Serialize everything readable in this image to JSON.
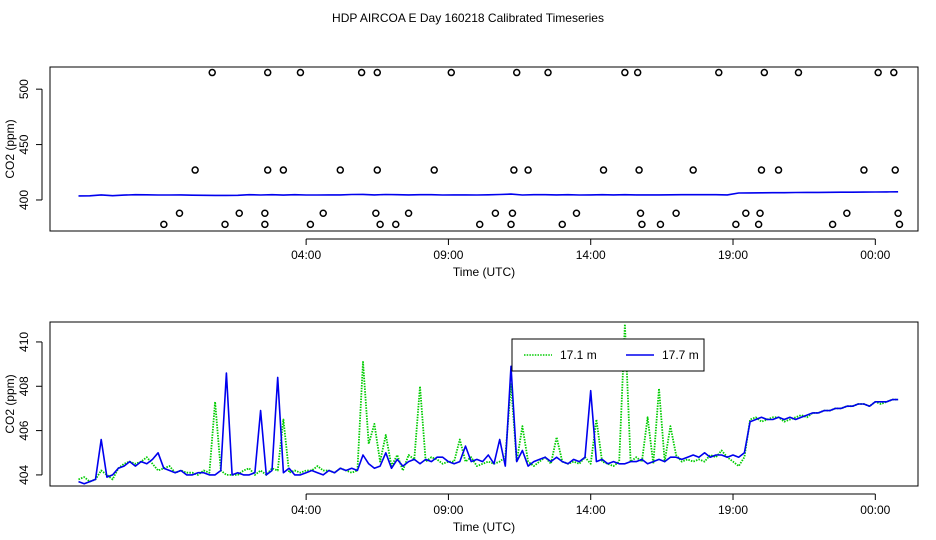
{
  "page": {
    "title": "HDP AIRCOA E  Day 160218  Calibrated Timeseries"
  },
  "colors": {
    "series_171": "#00cc00",
    "series_177": "#0000ee",
    "axis": "#000000"
  },
  "chart_data": [
    {
      "type": "scatter",
      "xlabel": "Time (UTC)",
      "ylabel": "CO2 (ppm)",
      "x_unit": "hours since 00:00 UTC (date axis)",
      "xlim": [
        -5,
        25.5
      ],
      "ylim": [
        372,
        520
      ],
      "x_ticks": [
        4,
        9,
        14,
        19,
        24
      ],
      "x_tick_labels": [
        "04:00",
        "09:00",
        "14:00",
        "19:00",
        "00:00"
      ],
      "y_ticks": [
        400,
        450,
        500
      ],
      "y_tick_labels": [
        "400",
        "450",
        "500"
      ],
      "grid": false,
      "point_series": {
        "name": "",
        "marker": "open-circle",
        "points": [
          [
            -1.0,
            378
          ],
          [
            -0.45,
            388
          ],
          [
            0.1,
            427
          ],
          [
            0.7,
            515
          ],
          [
            1.15,
            378
          ],
          [
            1.65,
            388
          ],
          [
            2.55,
            378
          ],
          [
            2.55,
            388
          ],
          [
            2.65,
            427
          ],
          [
            2.65,
            515
          ],
          [
            3.2,
            427
          ],
          [
            3.8,
            515
          ],
          [
            4.15,
            378
          ],
          [
            4.6,
            388
          ],
          [
            5.2,
            427
          ],
          [
            5.95,
            515
          ],
          [
            6.45,
            388
          ],
          [
            6.5,
            427
          ],
          [
            6.5,
            515
          ],
          [
            6.6,
            378
          ],
          [
            7.15,
            378
          ],
          [
            7.6,
            388
          ],
          [
            8.5,
            427
          ],
          [
            9.1,
            515
          ],
          [
            10.1,
            378
          ],
          [
            10.65,
            388
          ],
          [
            11.2,
            378
          ],
          [
            11.25,
            388
          ],
          [
            11.3,
            427
          ],
          [
            11.4,
            515
          ],
          [
            11.8,
            427
          ],
          [
            12.5,
            515
          ],
          [
            13.0,
            378
          ],
          [
            13.5,
            388
          ],
          [
            14.45,
            427
          ],
          [
            15.2,
            515
          ],
          [
            15.65,
            515
          ],
          [
            15.7,
            427
          ],
          [
            15.75,
            388
          ],
          [
            15.8,
            378
          ],
          [
            16.45,
            378
          ],
          [
            17.0,
            388
          ],
          [
            17.6,
            427
          ],
          [
            18.5,
            515
          ],
          [
            19.1,
            378
          ],
          [
            19.45,
            388
          ],
          [
            19.9,
            378
          ],
          [
            19.95,
            388
          ],
          [
            20.0,
            427
          ],
          [
            20.1,
            515
          ],
          [
            20.6,
            427
          ],
          [
            21.3,
            515
          ],
          [
            22.5,
            378
          ],
          [
            23.0,
            388
          ],
          [
            23.6,
            427
          ],
          [
            24.1,
            515
          ],
          [
            24.65,
            515
          ],
          [
            24.7,
            427
          ],
          [
            24.8,
            388
          ],
          [
            24.85,
            378
          ]
        ]
      },
      "line_series": [
        {
          "name": "",
          "x": [
            -4.0,
            -3.6,
            -3.2,
            -2.8,
            -2.4,
            -2.0,
            -1.6,
            -1.2,
            -0.8,
            -0.4,
            0.0,
            0.4,
            0.8,
            1.2,
            1.6,
            2.0,
            2.4,
            2.8,
            3.2,
            3.6,
            4.0,
            4.4,
            4.8,
            5.2,
            5.6,
            6.0,
            6.4,
            6.8,
            7.2,
            7.6,
            8.0,
            8.4,
            8.8,
            9.2,
            9.6,
            10.0,
            10.4,
            10.8,
            11.2,
            11.6,
            12.0,
            12.4,
            12.8,
            13.2,
            13.6,
            14.0,
            14.4,
            14.8,
            15.2,
            15.6,
            16.0,
            16.4,
            16.8,
            17.2,
            17.6,
            18.0,
            18.4,
            18.8,
            19.2,
            19.6,
            20.0,
            20.4,
            20.8,
            21.2,
            21.6,
            22.0,
            22.4,
            22.8,
            23.2,
            23.6,
            24.0,
            24.4,
            24.8
          ],
          "y": [
            403.7,
            403.8,
            404.6,
            403.9,
            404.4,
            404.8,
            404.7,
            404.5,
            404.5,
            404.6,
            404.3,
            404.2,
            404.1,
            404.1,
            404.2,
            404.8,
            404.5,
            404.8,
            404.4,
            404.8,
            404.5,
            404.5,
            404.6,
            404.6,
            404.9,
            405.0,
            404.6,
            404.9,
            404.8,
            404.6,
            404.8,
            404.8,
            404.5,
            404.6,
            404.6,
            404.5,
            404.7,
            404.9,
            405.3,
            404.5,
            404.8,
            404.8,
            404.6,
            404.8,
            404.5,
            404.6,
            404.8,
            404.6,
            404.8,
            404.6,
            404.6,
            404.6,
            404.7,
            404.8,
            404.8,
            404.8,
            404.8,
            404.6,
            406.3,
            406.4,
            406.5,
            406.6,
            406.6,
            406.7,
            406.8,
            406.8,
            406.9,
            407.0,
            407.0,
            407.1,
            407.2,
            407.3,
            407.4
          ]
        }
      ]
    },
    {
      "type": "line",
      "xlabel": "Time (UTC)",
      "ylabel": "CO2 (ppm)",
      "x_unit": "hours since 00:00 UTC (date axis)",
      "xlim": [
        -5,
        25.5
      ],
      "ylim": [
        403.5,
        410.9
      ],
      "x_ticks": [
        4,
        9,
        14,
        19,
        24
      ],
      "x_tick_labels": [
        "04:00",
        "09:00",
        "14:00",
        "19:00",
        "00:00"
      ],
      "y_ticks": [
        404,
        406,
        408,
        410
      ],
      "y_tick_labels": [
        "404",
        "406",
        "408",
        "410"
      ],
      "grid": false,
      "legend": "top-center",
      "series": [
        {
          "name": "17.1 m",
          "color": "#00cc00",
          "style": "dotted",
          "x": [
            -4.0,
            -3.8,
            -3.6,
            -3.4,
            -3.2,
            -3.0,
            -2.8,
            -2.6,
            -2.4,
            -2.2,
            -2.0,
            -1.8,
            -1.6,
            -1.4,
            -1.2,
            -1.0,
            -0.8,
            -0.6,
            -0.4,
            -0.2,
            0.0,
            0.2,
            0.4,
            0.6,
            0.8,
            1.0,
            1.2,
            1.4,
            1.6,
            1.8,
            2.0,
            2.2,
            2.4,
            2.6,
            2.8,
            3.0,
            3.2,
            3.4,
            3.6,
            3.8,
            4.0,
            4.2,
            4.4,
            4.6,
            4.8,
            5.0,
            5.2,
            5.4,
            5.6,
            5.8,
            6.0,
            6.2,
            6.4,
            6.6,
            6.8,
            7.0,
            7.2,
            7.4,
            7.6,
            7.8,
            8.0,
            8.2,
            8.4,
            8.6,
            8.8,
            9.0,
            9.2,
            9.4,
            9.6,
            9.8,
            10.0,
            10.2,
            10.4,
            10.6,
            10.8,
            11.0,
            11.2,
            11.4,
            11.6,
            11.8,
            12.0,
            12.2,
            12.4,
            12.6,
            12.8,
            13.0,
            13.2,
            13.4,
            13.6,
            13.8,
            14.0,
            14.2,
            14.4,
            14.6,
            14.8,
            15.0,
            15.2,
            15.4,
            15.6,
            15.8,
            16.0,
            16.2,
            16.4,
            16.6,
            16.8,
            17.0,
            17.2,
            17.4,
            17.6,
            17.8,
            18.0,
            18.2,
            18.4,
            18.6,
            18.8,
            19.0,
            19.2,
            19.4,
            19.6,
            19.8,
            20.0,
            20.2,
            20.4,
            20.6,
            20.8,
            21.0,
            21.2,
            21.4,
            21.6,
            21.8,
            22.0,
            22.2,
            22.4,
            22.6,
            22.8,
            23.0,
            23.2,
            23.4,
            23.6,
            23.8,
            24.0,
            24.2,
            24.4,
            24.6,
            24.8
          ],
          "y": [
            403.8,
            403.9,
            403.7,
            403.8,
            404.2,
            404.0,
            403.8,
            404.3,
            404.5,
            404.6,
            404.5,
            404.6,
            404.8,
            404.5,
            404.2,
            404.3,
            404.4,
            404.1,
            404.2,
            404.1,
            404.1,
            404.0,
            404.2,
            404.1,
            407.3,
            404.2,
            404.0,
            404.0,
            404.0,
            404.2,
            404.3,
            404.0,
            404.2,
            404.0,
            404.3,
            404.2,
            406.5,
            404.1,
            404.2,
            404.1,
            404.2,
            404.2,
            404.4,
            404.2,
            404.2,
            404.1,
            404.3,
            404.2,
            404.1,
            404.2,
            409.1,
            405.4,
            406.3,
            404.6,
            405.8,
            404.4,
            404.9,
            404.2,
            404.9,
            404.7,
            408.0,
            404.6,
            404.8,
            404.7,
            404.5,
            404.6,
            404.6,
            405.6,
            404.6,
            404.8,
            404.4,
            404.5,
            404.6,
            404.5,
            404.6,
            404.8,
            408.1,
            404.6,
            406.2,
            404.6,
            404.4,
            404.6,
            404.8,
            404.5,
            405.7,
            404.6,
            404.5,
            404.6,
            404.5,
            404.8,
            404.5,
            406.5,
            404.6,
            404.5,
            404.4,
            404.6,
            410.8,
            404.6,
            404.8,
            404.6,
            406.6,
            404.5,
            407.9,
            404.6,
            406.2,
            404.9,
            404.6,
            404.7,
            404.6,
            404.7,
            404.6,
            404.9,
            404.8,
            405.1,
            404.8,
            404.6,
            404.4,
            404.8,
            406.5,
            406.6,
            406.4,
            406.5,
            406.6,
            406.6,
            406.4,
            406.5,
            406.6,
            406.7,
            406.6,
            406.8,
            406.8,
            406.9,
            406.9,
            407.0,
            407.0,
            407.1,
            407.1,
            407.2,
            407.2,
            407.1,
            407.3,
            407.2,
            407.3,
            407.4,
            407.4
          ]
        },
        {
          "name": "17.7 m",
          "color": "#0000ee",
          "style": "solid",
          "x": [
            -4.0,
            -3.8,
            -3.6,
            -3.4,
            -3.2,
            -3.0,
            -2.8,
            -2.6,
            -2.4,
            -2.2,
            -2.0,
            -1.8,
            -1.6,
            -1.4,
            -1.2,
            -1.0,
            -0.8,
            -0.6,
            -0.4,
            -0.2,
            0.0,
            0.2,
            0.4,
            0.6,
            0.8,
            1.0,
            1.2,
            1.4,
            1.6,
            1.8,
            2.0,
            2.2,
            2.4,
            2.6,
            2.8,
            3.0,
            3.2,
            3.4,
            3.6,
            3.8,
            4.0,
            4.2,
            4.4,
            4.6,
            4.8,
            5.0,
            5.2,
            5.4,
            5.6,
            5.8,
            6.0,
            6.2,
            6.4,
            6.6,
            6.8,
            7.0,
            7.2,
            7.4,
            7.6,
            7.8,
            8.0,
            8.2,
            8.4,
            8.6,
            8.8,
            9.0,
            9.2,
            9.4,
            9.6,
            9.8,
            10.0,
            10.2,
            10.4,
            10.6,
            10.8,
            11.0,
            11.2,
            11.4,
            11.6,
            11.8,
            12.0,
            12.2,
            12.4,
            12.6,
            12.8,
            13.0,
            13.2,
            13.4,
            13.6,
            13.8,
            14.0,
            14.2,
            14.4,
            14.6,
            14.8,
            15.0,
            15.2,
            15.4,
            15.6,
            15.8,
            16.0,
            16.2,
            16.4,
            16.6,
            16.8,
            17.0,
            17.2,
            17.4,
            17.6,
            17.8,
            18.0,
            18.2,
            18.4,
            18.6,
            18.8,
            19.0,
            19.2,
            19.4,
            19.6,
            19.8,
            20.0,
            20.2,
            20.4,
            20.6,
            20.8,
            21.0,
            21.2,
            21.4,
            21.6,
            21.8,
            22.0,
            22.2,
            22.4,
            22.6,
            22.8,
            23.0,
            23.2,
            23.4,
            23.6,
            23.8,
            24.0,
            24.2,
            24.4,
            24.6,
            24.8
          ],
          "y": [
            403.7,
            403.6,
            403.7,
            403.8,
            405.6,
            403.9,
            404.0,
            404.3,
            404.4,
            404.6,
            404.4,
            404.6,
            404.5,
            404.7,
            405.0,
            404.3,
            404.2,
            404.1,
            404.2,
            404.0,
            404.0,
            404.1,
            404.1,
            404.0,
            404.0,
            404.2,
            408.6,
            404.0,
            404.1,
            404.0,
            404.0,
            404.1,
            406.9,
            404.0,
            404.2,
            408.4,
            404.1,
            404.3,
            404.0,
            404.0,
            404.1,
            404.2,
            404.1,
            404.0,
            404.2,
            404.1,
            404.3,
            404.2,
            404.3,
            404.2,
            404.9,
            404.5,
            404.3,
            404.4,
            405.0,
            404.3,
            404.7,
            404.4,
            404.6,
            404.7,
            404.5,
            404.7,
            404.6,
            404.8,
            404.8,
            404.6,
            404.5,
            404.6,
            405.3,
            404.6,
            404.7,
            404.6,
            404.9,
            404.5,
            405.6,
            404.4,
            408.9,
            404.6,
            405.1,
            404.4,
            404.6,
            404.7,
            404.8,
            404.6,
            404.8,
            404.6,
            404.5,
            404.7,
            404.6,
            404.8,
            407.8,
            404.6,
            404.7,
            404.5,
            404.6,
            404.5,
            404.5,
            404.6,
            404.6,
            404.7,
            404.5,
            404.6,
            404.7,
            404.6,
            404.8,
            404.8,
            404.7,
            404.8,
            404.9,
            404.8,
            405.0,
            404.8,
            404.9,
            404.9,
            404.8,
            404.9,
            404.8,
            405.0,
            406.4,
            406.5,
            406.6,
            406.5,
            406.5,
            406.6,
            406.5,
            406.6,
            406.5,
            406.6,
            406.7,
            406.8,
            406.8,
            406.9,
            406.9,
            407.0,
            407.0,
            407.1,
            407.1,
            407.2,
            407.2,
            407.1,
            407.3,
            407.3,
            407.3,
            407.4,
            407.4
          ]
        }
      ]
    }
  ]
}
